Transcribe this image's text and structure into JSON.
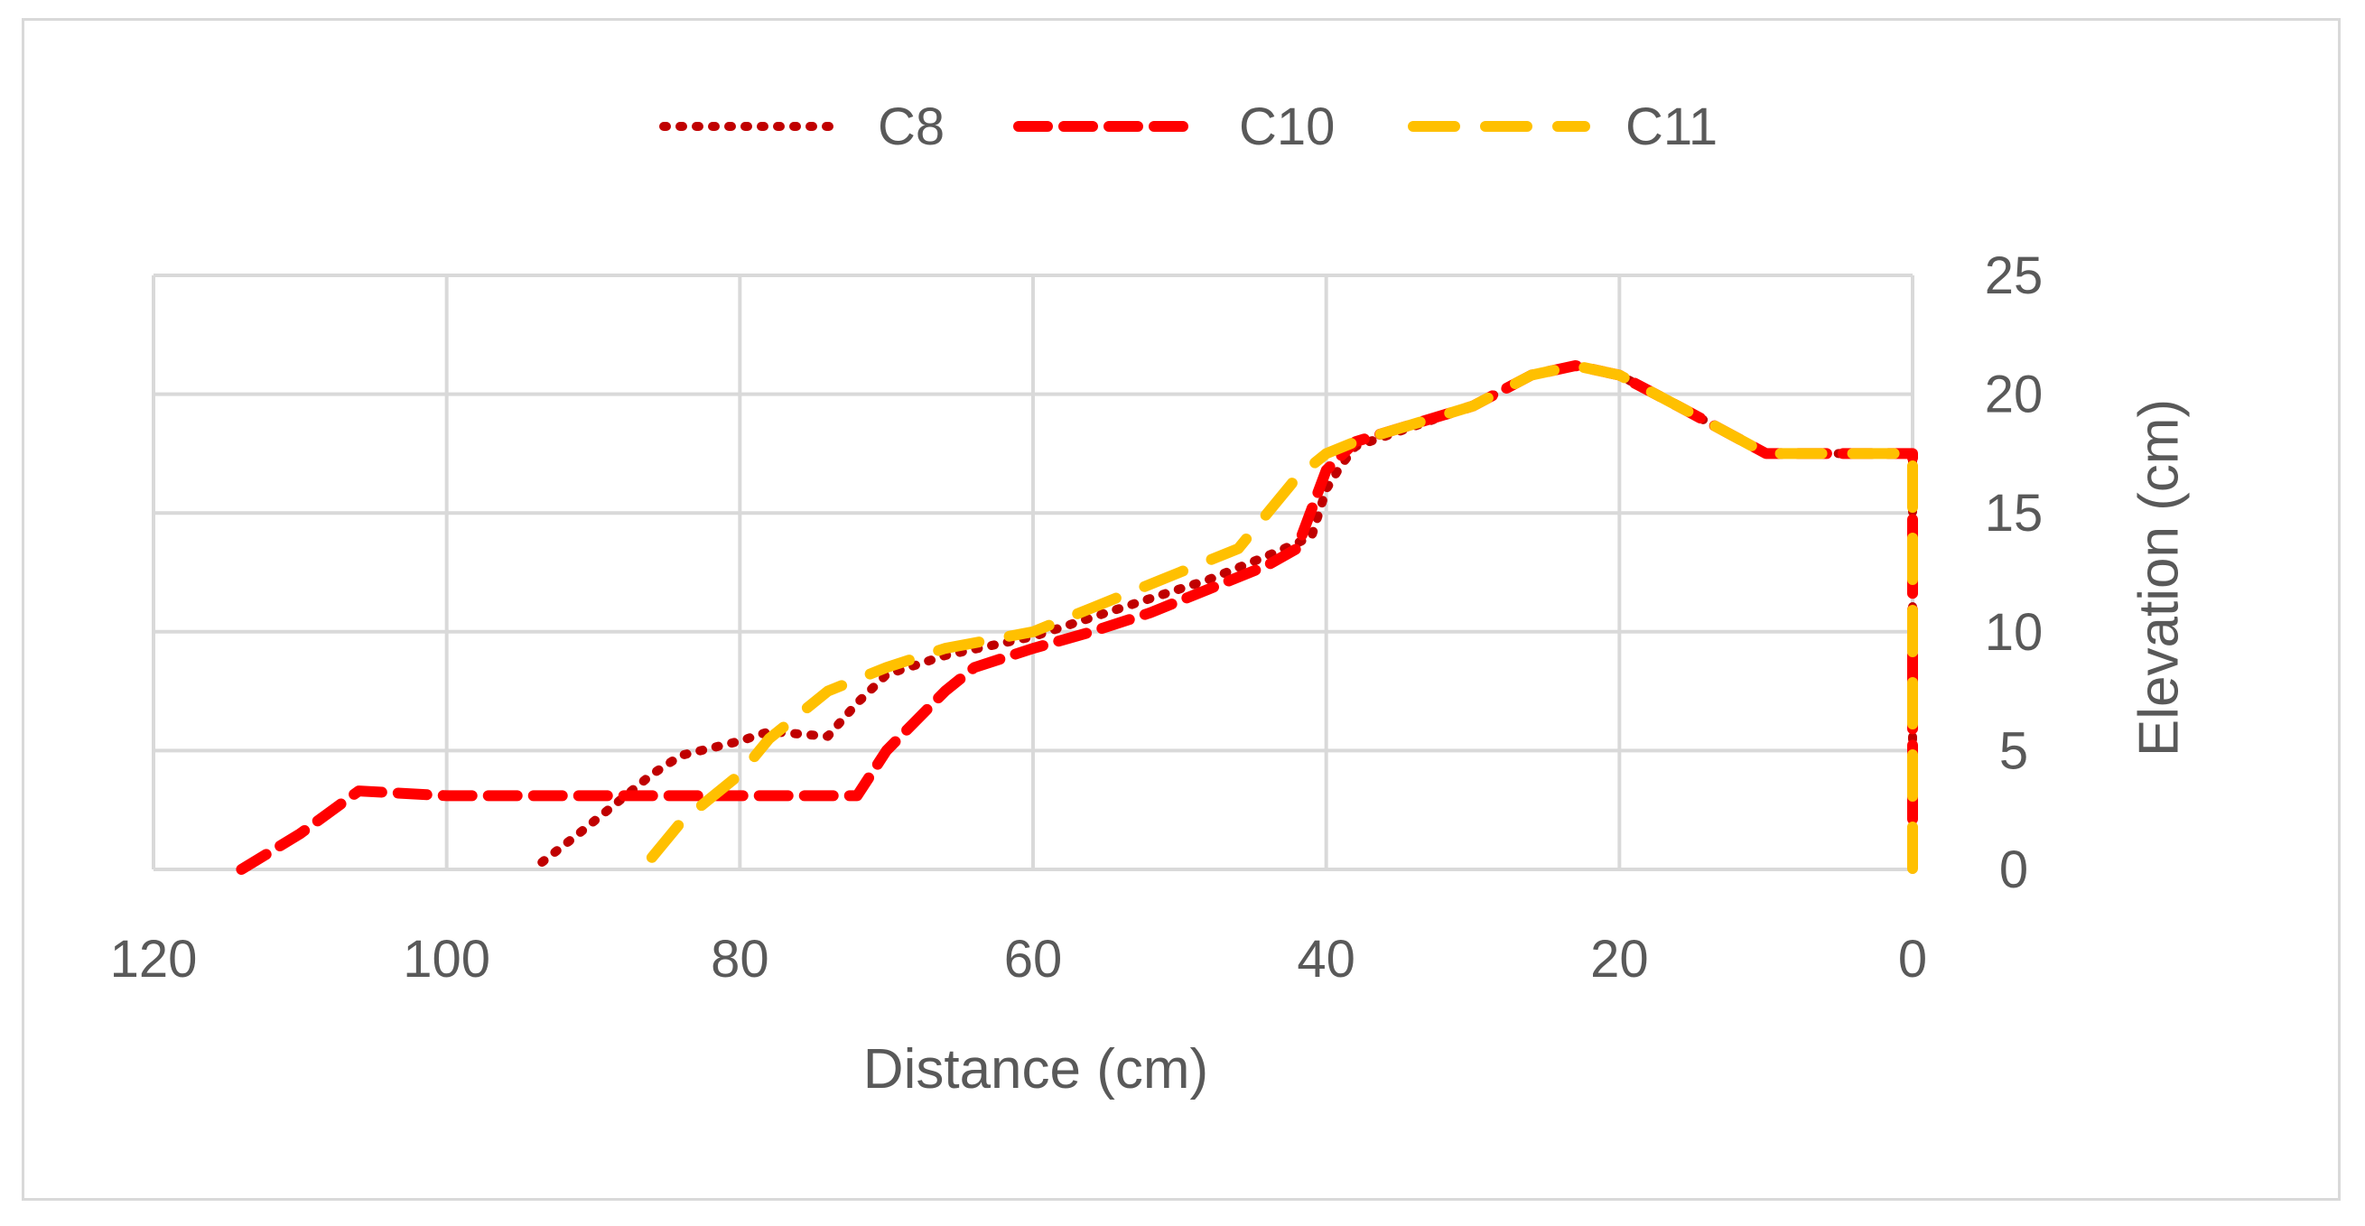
{
  "chart_data": {
    "type": "line",
    "title": "",
    "xlabel": "Distance  (cm)",
    "ylabel": "Elevation  (cm)",
    "xlim": [
      120,
      0
    ],
    "ylim": [
      0,
      25
    ],
    "x_reversed": true,
    "y_axis_side": "right",
    "xticks": [
      120,
      100,
      80,
      60,
      40,
      20,
      0
    ],
    "yticks": [
      0,
      5,
      10,
      15,
      20,
      25
    ],
    "grid": true,
    "legend_position": "top",
    "series": [
      {
        "name": "C8",
        "color": "#c00000",
        "style": "dotted",
        "points": [
          [
            93.5,
            0.3
          ],
          [
            91,
            1.5
          ],
          [
            88,
            3
          ],
          [
            86,
            4
          ],
          [
            84,
            4.8
          ],
          [
            80,
            5.4
          ],
          [
            78,
            5.8
          ],
          [
            74,
            5.6
          ],
          [
            72,
            7
          ],
          [
            70,
            8.2
          ],
          [
            66,
            9
          ],
          [
            60,
            9.8
          ],
          [
            54,
            11
          ],
          [
            48,
            12.2
          ],
          [
            44,
            13.2
          ],
          [
            41,
            14
          ],
          [
            40,
            16
          ],
          [
            39,
            17
          ],
          [
            38,
            17.8
          ],
          [
            30,
            19.5
          ],
          [
            26,
            20.8
          ],
          [
            23,
            21.2
          ],
          [
            20,
            20.8
          ],
          [
            16,
            19.5
          ],
          [
            10,
            17.5
          ],
          [
            6,
            17.5
          ],
          [
            0,
            17.5
          ],
          [
            0,
            0
          ]
        ]
      },
      {
        "name": "C10",
        "color": "#ff0000",
        "style": "dashed",
        "points": [
          [
            114,
            0
          ],
          [
            110,
            1.5
          ],
          [
            106,
            3.3
          ],
          [
            100,
            3.1
          ],
          [
            90,
            3.1
          ],
          [
            80,
            3.1
          ],
          [
            72,
            3.1
          ],
          [
            70,
            5
          ],
          [
            66,
            7.5
          ],
          [
            64,
            8.5
          ],
          [
            60,
            9.3
          ],
          [
            56,
            10
          ],
          [
            52,
            10.8
          ],
          [
            48,
            11.8
          ],
          [
            44,
            12.8
          ],
          [
            42,
            13.5
          ],
          [
            40,
            16.8
          ],
          [
            38,
            18
          ],
          [
            30,
            19.5
          ],
          [
            26,
            20.8
          ],
          [
            23,
            21.2
          ],
          [
            20,
            20.8
          ],
          [
            16,
            19.5
          ],
          [
            10,
            17.5
          ],
          [
            6,
            17.5
          ],
          [
            0,
            17.5
          ],
          [
            0,
            0
          ]
        ]
      },
      {
        "name": "C11",
        "color": "#ffc000",
        "style": "long-dashed",
        "points": [
          [
            86,
            0.5
          ],
          [
            84,
            2
          ],
          [
            80,
            4
          ],
          [
            78,
            5.5
          ],
          [
            74,
            7.5
          ],
          [
            70,
            8.5
          ],
          [
            66,
            9.3
          ],
          [
            60,
            10
          ],
          [
            56,
            11
          ],
          [
            50,
            12.5
          ],
          [
            46,
            13.5
          ],
          [
            44,
            15
          ],
          [
            42,
            16.5
          ],
          [
            40,
            17.5
          ],
          [
            38,
            18
          ],
          [
            30,
            19.5
          ],
          [
            26,
            20.8
          ],
          [
            23,
            21.2
          ],
          [
            20,
            20.8
          ],
          [
            16,
            19.5
          ],
          [
            10,
            17.5
          ],
          [
            6,
            17.5
          ],
          [
            0,
            17.5
          ],
          [
            0,
            0
          ]
        ]
      }
    ]
  }
}
